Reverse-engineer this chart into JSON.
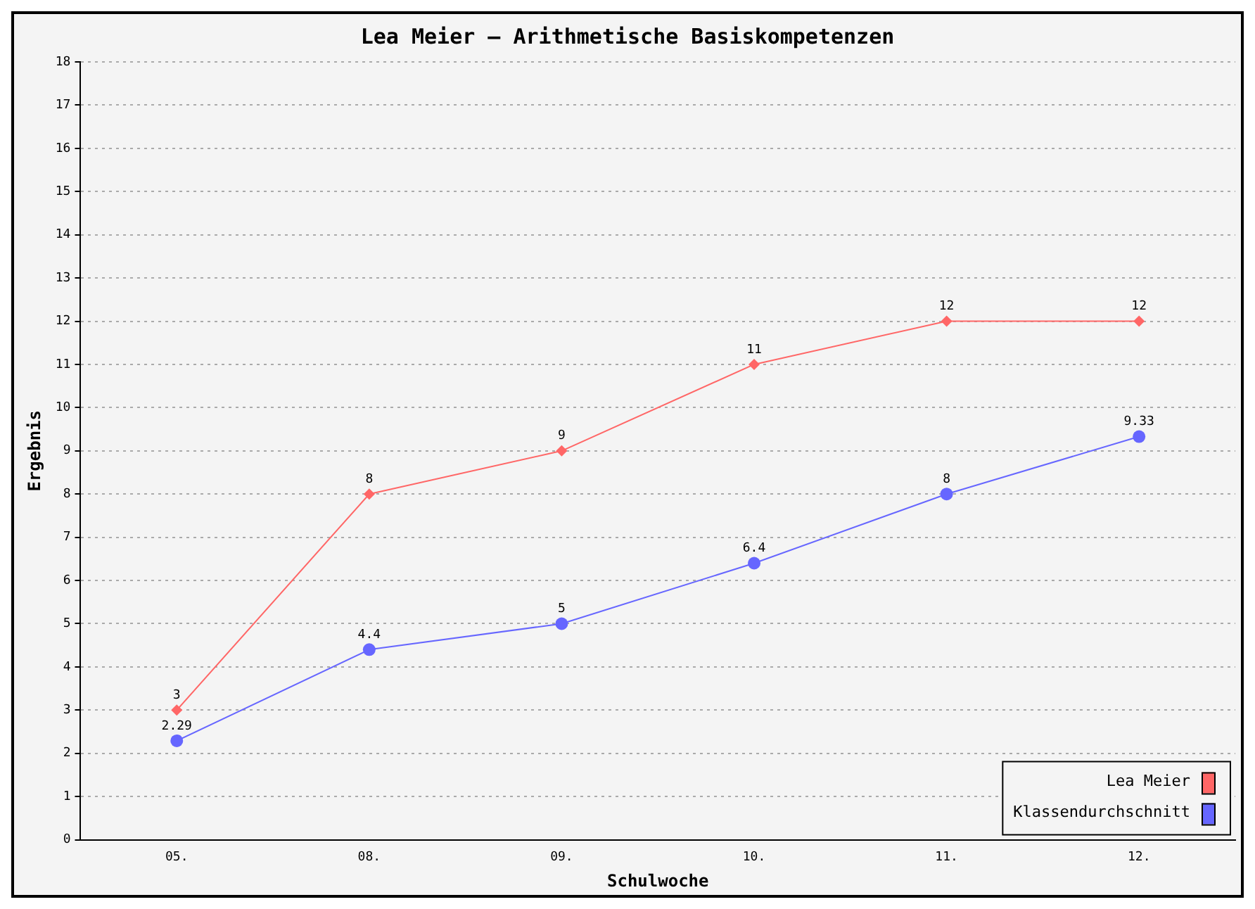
{
  "chart_data": {
    "type": "line",
    "title": "Lea Meier – Arithmetische Basiskompetenzen",
    "xlabel": "Schulwoche",
    "ylabel": "Ergebnis",
    "categories": [
      "05.",
      "08.",
      "09.",
      "10.",
      "11.",
      "12."
    ],
    "series": [
      {
        "name": "Lea Meier",
        "color": "#ff6666",
        "marker": "diamond",
        "values": [
          3,
          8,
          9,
          11,
          12,
          12
        ]
      },
      {
        "name": "Klassendurchschnitt",
        "color": "#6666ff",
        "marker": "circle",
        "values": [
          2.29,
          4.4,
          5,
          6.4,
          8,
          9.33
        ]
      }
    ],
    "ylim": [
      0,
      18
    ],
    "yticks": [
      0,
      1,
      2,
      3,
      4,
      5,
      6,
      7,
      8,
      9,
      10,
      11,
      12,
      13,
      14,
      15,
      16,
      17,
      18
    ],
    "grid": "y",
    "legend": "bottom right",
    "data_labels": true,
    "line_style": "solid"
  }
}
